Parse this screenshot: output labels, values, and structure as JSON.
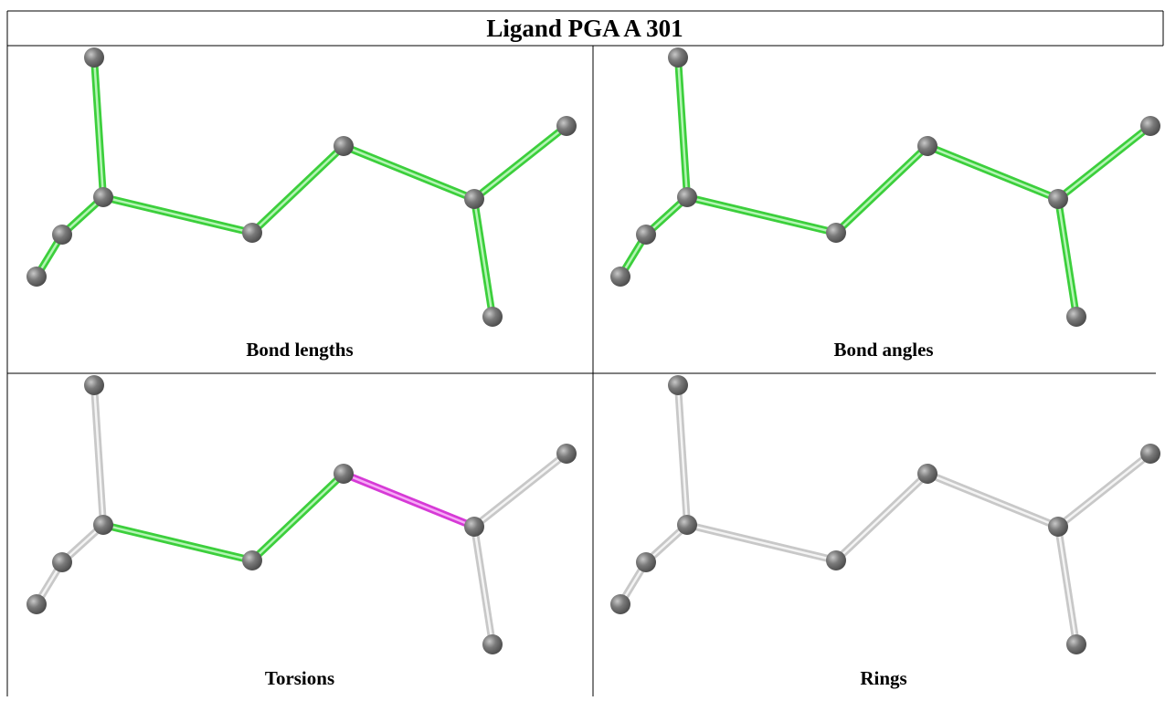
{
  "header": {
    "title": "Ligand PGA A 301"
  },
  "panels": [
    {
      "caption": "Bond lengths"
    },
    {
      "caption": "Bond angles"
    },
    {
      "caption": "Torsions"
    },
    {
      "caption": "Rings"
    }
  ]
}
